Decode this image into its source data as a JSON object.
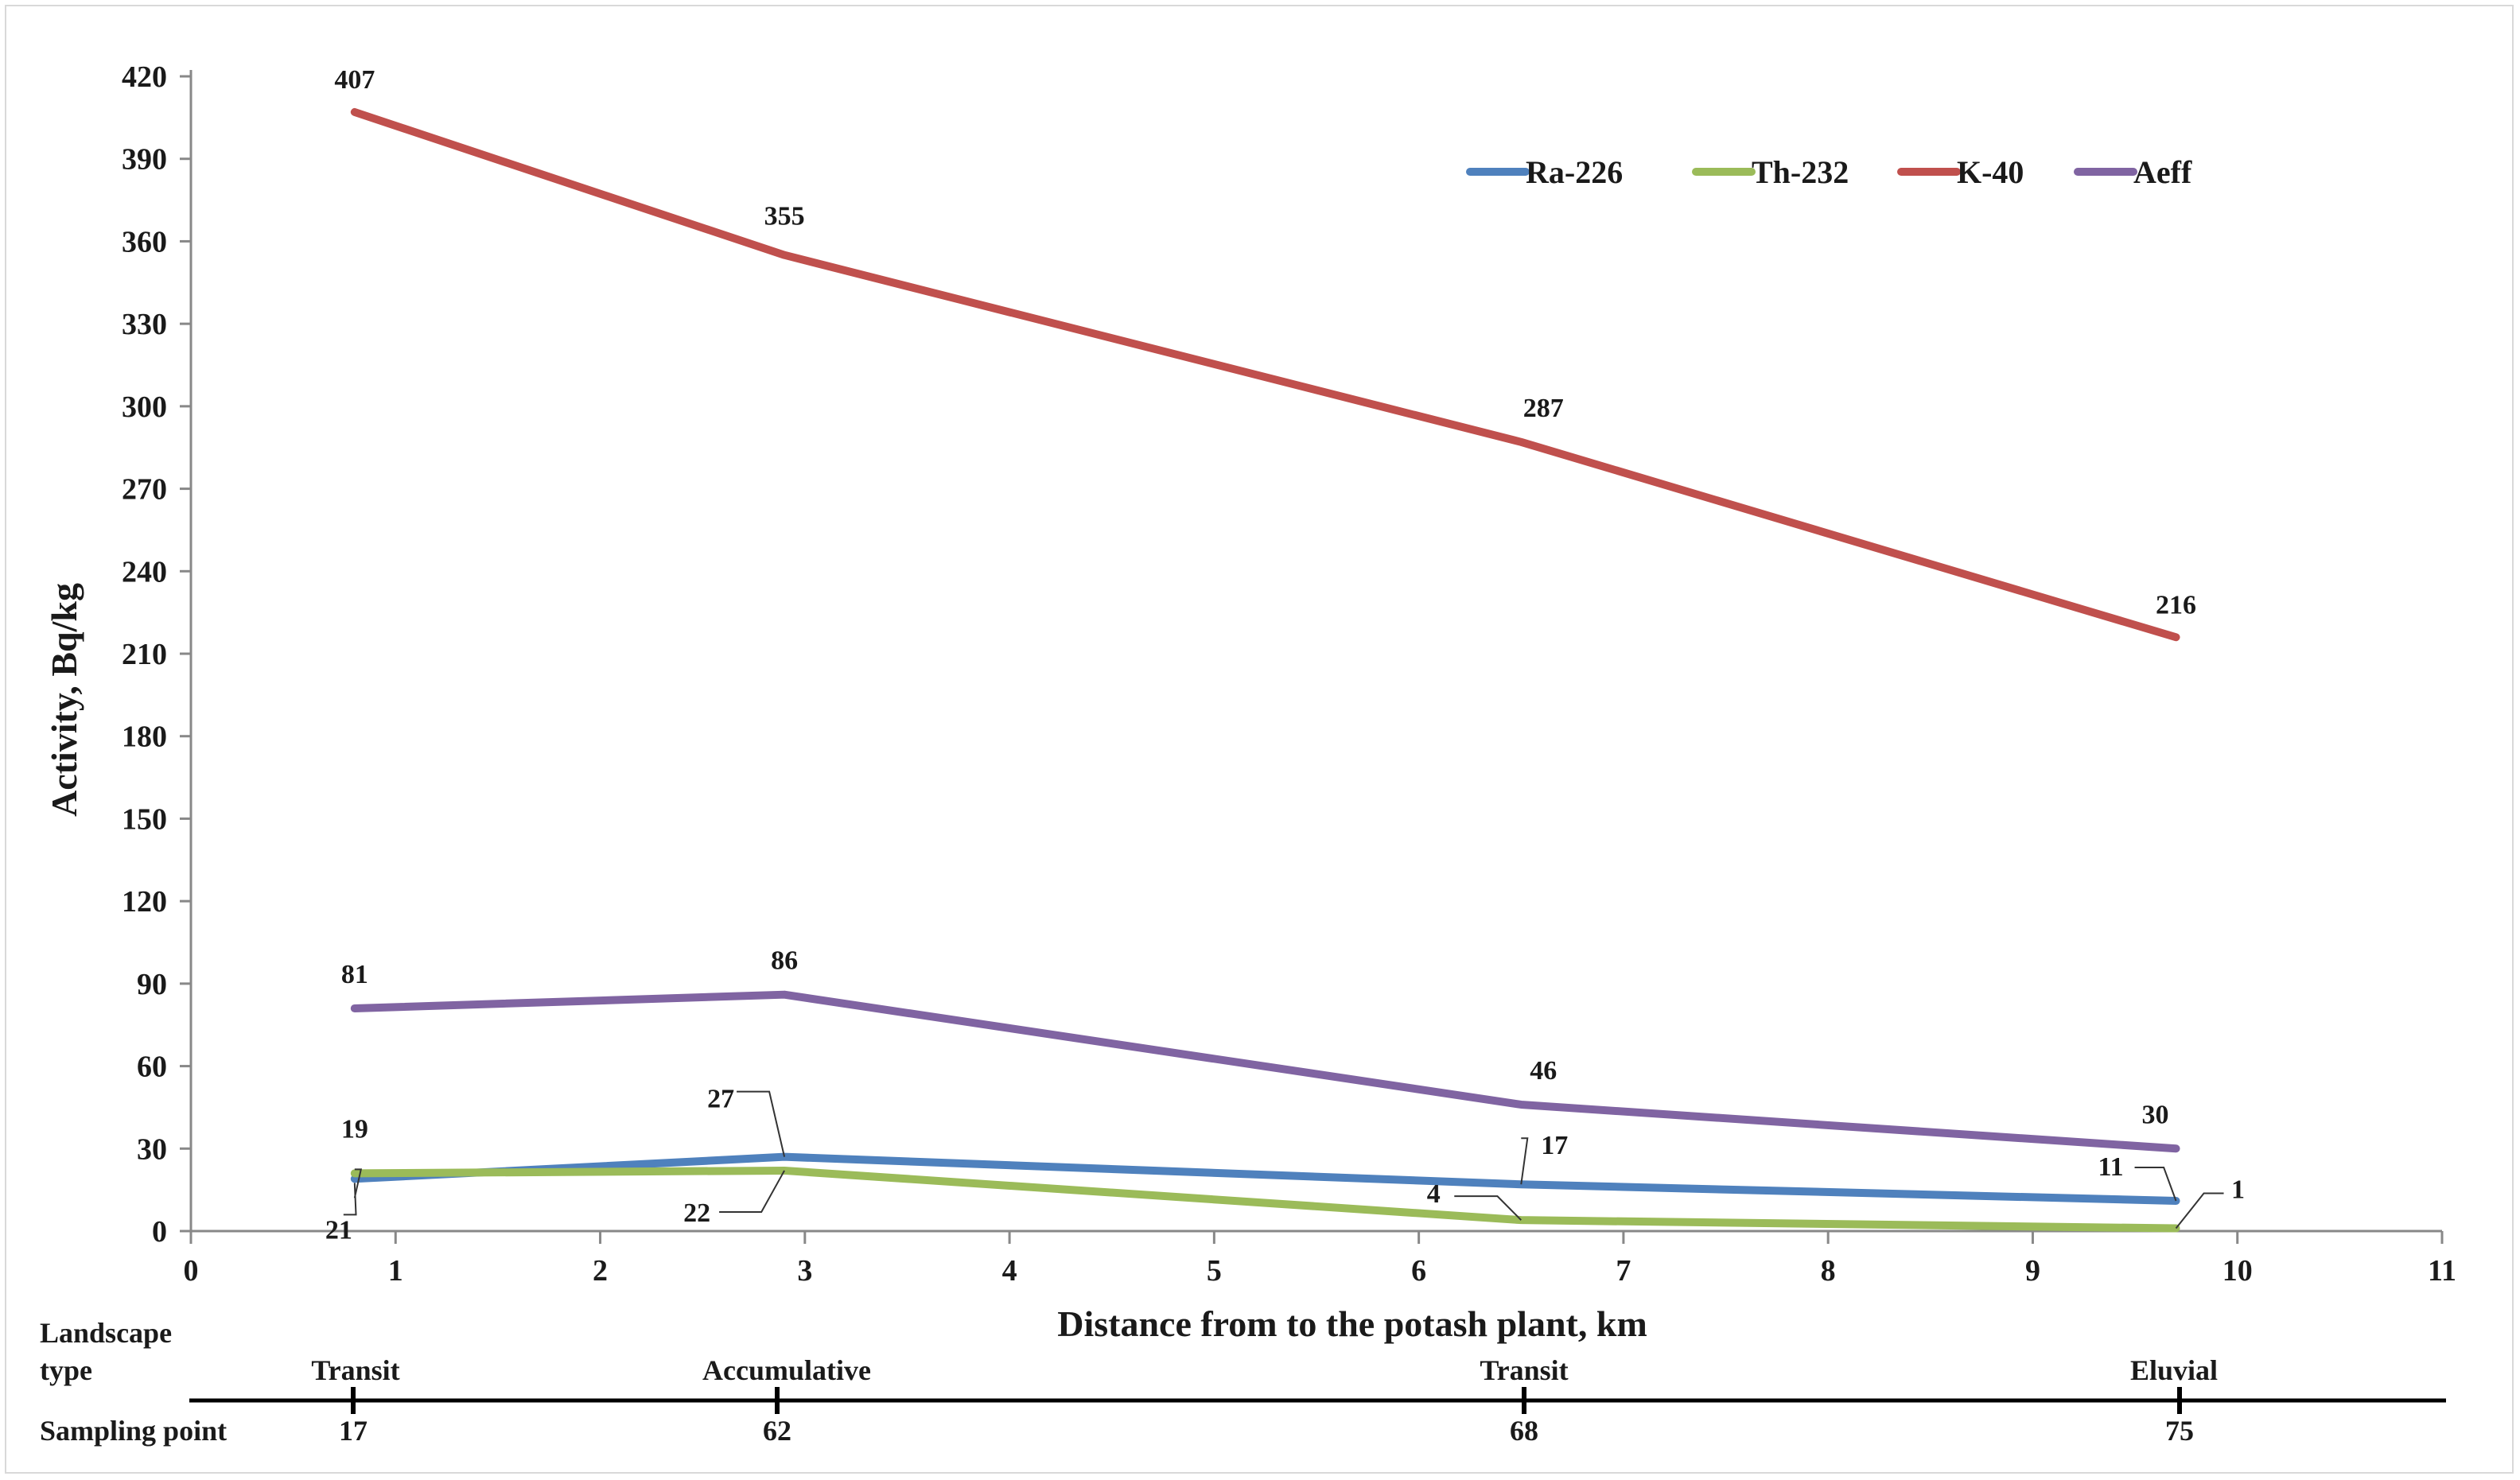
{
  "chart_data": {
    "type": "line",
    "title": "",
    "xlabel": "Distance from to the potash plant, km",
    "ylabel": "Activity, Bq/kg",
    "xlim": [
      0,
      11
    ],
    "ylim": [
      0,
      420
    ],
    "xticks": [
      0,
      1,
      2,
      3,
      4,
      5,
      6,
      7,
      8,
      9,
      10,
      11
    ],
    "yticks": [
      0,
      30,
      60,
      90,
      120,
      150,
      180,
      210,
      240,
      270,
      300,
      330,
      360,
      390,
      420
    ],
    "x": [
      0.8,
      2.9,
      6.5,
      9.7
    ],
    "legend_position": "top-right",
    "series": [
      {
        "name": "Ra-226",
        "color": "#4f81bd",
        "values": [
          19,
          27,
          17,
          11
        ],
        "labels": [
          "19",
          "27",
          "17",
          "11"
        ]
      },
      {
        "name": "Th-232",
        "color": "#9bbb59",
        "values": [
          21,
          22,
          4,
          1
        ],
        "labels": [
          "21",
          "22",
          "4",
          "1"
        ]
      },
      {
        "name": "K-40",
        "color": "#c0504d",
        "values": [
          407,
          355,
          287,
          216
        ],
        "labels": [
          "407",
          "355",
          "287",
          "216"
        ]
      },
      {
        "name": "Aeff",
        "color": "#8064a2",
        "values": [
          81,
          86,
          46,
          30
        ],
        "labels": [
          "81",
          "86",
          "46",
          "30"
        ]
      }
    ]
  },
  "bottom_table": {
    "landscape_label_line1": "Landscape",
    "landscape_label_line2": "type",
    "sampling_label": "Sampling point",
    "landscape_types": [
      "Transit",
      "Accumulative",
      "Transit",
      "Eluvial"
    ],
    "sampling_points": [
      "17",
      "62",
      "68",
      "75"
    ]
  }
}
